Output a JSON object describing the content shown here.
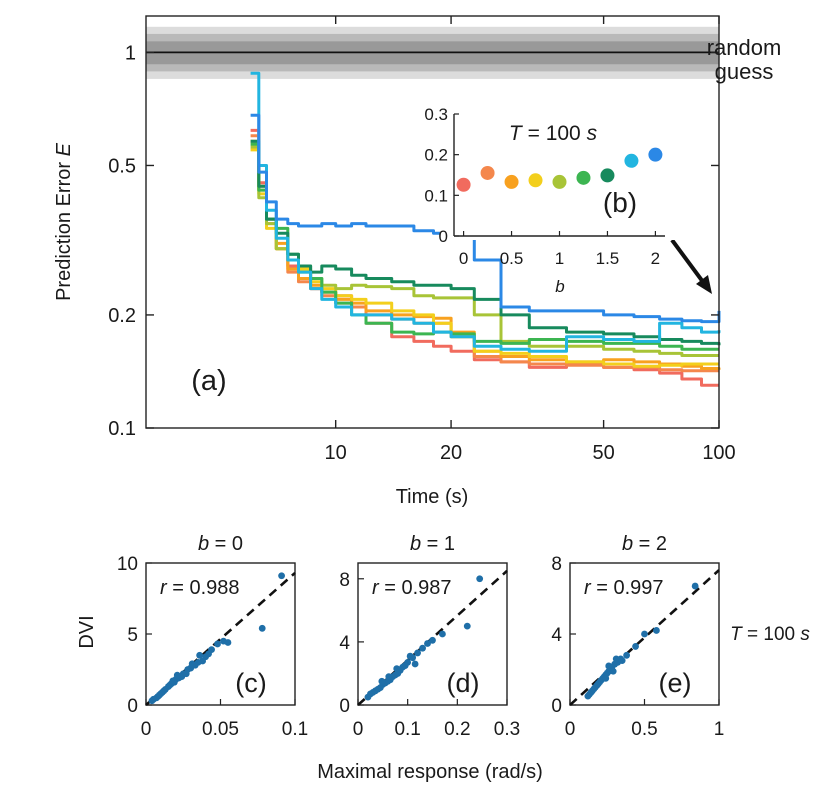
{
  "chart_data": {
    "main": {
      "type": "line",
      "panel_label": "(a)",
      "xlabel": "Time (s)",
      "ylabel_text": "Prediction Error",
      "ylabel_var": "E",
      "xscale": "log",
      "yscale": "log",
      "xlim": [
        3.2,
        100
      ],
      "ylim": [
        0.1,
        1.25
      ],
      "x_ticks": [
        10,
        20,
        50,
        100
      ],
      "x_tick_labels": [
        "10",
        "20",
        "50",
        "100"
      ],
      "y_ticks": [
        0.1,
        0.2,
        0.5,
        1
      ],
      "y_tick_labels": [
        "0.1",
        "0.2",
        "0.5",
        "1"
      ],
      "random_guess": {
        "label_line1": "random",
        "label_line2": "guess",
        "value": 1.0,
        "bands": [
          [
            0.85,
            1.17
          ],
          [
            0.89,
            1.12
          ],
          [
            0.93,
            1.07
          ]
        ]
      },
      "series": [
        {
          "name": "b=0",
          "color": "#f16b5e",
          "x": [
            6.0,
            6.3,
            6.6,
            7.0,
            7.5,
            8.0,
            8.6,
            9.2,
            10,
            11,
            12,
            14,
            16,
            18,
            20,
            23,
            27,
            32,
            40,
            50,
            60,
            70,
            80,
            90,
            100
          ],
          "y": [
            0.62,
            0.45,
            0.36,
            0.3,
            0.27,
            0.25,
            0.235,
            0.23,
            0.225,
            0.21,
            0.19,
            0.175,
            0.17,
            0.165,
            0.16,
            0.152,
            0.15,
            0.145,
            0.148,
            0.145,
            0.143,
            0.14,
            0.135,
            0.13,
            0.13
          ]
        },
        {
          "name": "b=0.25",
          "color": "#f4874c",
          "x": [
            6.0,
            6.3,
            6.6,
            7.0,
            7.5,
            8.0,
            8.6,
            9.2,
            10,
            11,
            12,
            14,
            16,
            18,
            20,
            23,
            27,
            32,
            40,
            50,
            60,
            70,
            80,
            90,
            100
          ],
          "y": [
            0.6,
            0.44,
            0.35,
            0.3,
            0.26,
            0.245,
            0.235,
            0.225,
            0.215,
            0.21,
            0.2,
            0.195,
            0.19,
            0.19,
            0.175,
            0.155,
            0.15,
            0.148,
            0.147,
            0.145,
            0.145,
            0.143,
            0.142,
            0.142,
            0.142
          ]
        },
        {
          "name": "b=0.5",
          "color": "#f8a11f",
          "x": [
            6.0,
            6.3,
            6.6,
            7.0,
            7.5,
            8.0,
            8.6,
            9.2,
            10,
            11,
            12,
            14,
            16,
            18,
            20,
            23,
            27,
            32,
            40,
            50,
            60,
            70,
            80,
            90,
            100
          ],
          "y": [
            0.58,
            0.43,
            0.36,
            0.31,
            0.265,
            0.25,
            0.24,
            0.23,
            0.22,
            0.215,
            0.205,
            0.2,
            0.198,
            0.196,
            0.18,
            0.16,
            0.155,
            0.152,
            0.15,
            0.152,
            0.15,
            0.148,
            0.146,
            0.144,
            0.143
          ]
        },
        {
          "name": "b=0.75",
          "color": "#f3cf1c",
          "x": [
            6.0,
            6.3,
            6.6,
            7.0,
            7.5,
            8.0,
            8.6,
            9.2,
            10,
            11,
            12,
            14,
            16,
            18,
            20,
            23,
            27,
            32,
            40,
            50,
            60,
            70,
            80,
            90,
            100
          ],
          "y": [
            0.55,
            0.42,
            0.34,
            0.3,
            0.28,
            0.265,
            0.245,
            0.235,
            0.225,
            0.22,
            0.215,
            0.205,
            0.2,
            0.19,
            0.175,
            0.16,
            0.158,
            0.155,
            0.15,
            0.148,
            0.146,
            0.147,
            0.148,
            0.148,
            0.148
          ]
        },
        {
          "name": "b=1",
          "color": "#a8c437",
          "x": [
            6.0,
            6.3,
            6.6,
            7.0,
            7.5,
            8.0,
            8.6,
            9.2,
            10,
            11,
            12,
            14,
            16,
            18,
            20,
            23,
            27,
            32,
            40,
            50,
            60,
            70,
            80,
            90,
            100
          ],
          "y": [
            0.56,
            0.41,
            0.35,
            0.3,
            0.28,
            0.26,
            0.25,
            0.24,
            0.235,
            0.24,
            0.238,
            0.235,
            0.225,
            0.222,
            0.222,
            0.2,
            0.17,
            0.165,
            0.165,
            0.162,
            0.16,
            0.158,
            0.156,
            0.156,
            0.156
          ]
        },
        {
          "name": "b=1.25",
          "color": "#3cb551",
          "x": [
            6.0,
            6.3,
            6.6,
            7.0,
            7.5,
            8.0,
            8.6,
            9.2,
            10,
            11,
            12,
            14,
            16,
            18,
            20,
            23,
            27,
            32,
            40,
            50,
            60,
            70,
            80,
            90,
            100
          ],
          "y": [
            0.57,
            0.43,
            0.36,
            0.34,
            0.29,
            0.27,
            0.25,
            0.23,
            0.215,
            0.2,
            0.19,
            0.18,
            0.178,
            0.18,
            0.178,
            0.17,
            0.168,
            0.172,
            0.17,
            0.168,
            0.168,
            0.165,
            0.162,
            0.162,
            0.162
          ]
        },
        {
          "name": "b=1.5",
          "color": "#178a5d",
          "x": [
            6.0,
            6.3,
            6.6,
            7.0,
            7.5,
            8.0,
            8.6,
            9.2,
            10,
            11,
            12,
            14,
            16,
            18,
            20,
            23,
            27,
            32,
            40,
            50,
            60,
            70,
            80,
            90,
            100
          ],
          "y": [
            0.58,
            0.44,
            0.36,
            0.33,
            0.29,
            0.27,
            0.26,
            0.27,
            0.265,
            0.255,
            0.25,
            0.245,
            0.24,
            0.24,
            0.235,
            0.22,
            0.2,
            0.185,
            0.18,
            0.178,
            0.175,
            0.172,
            0.17,
            0.168,
            0.166
          ]
        },
        {
          "name": "b=1.75",
          "color": "#22b5e0",
          "x": [
            6.0,
            6.3,
            6.6,
            7.0,
            7.5,
            8.0,
            8.6,
            9.2,
            10,
            11,
            12,
            14,
            16,
            18,
            20,
            23,
            27,
            32,
            40,
            50,
            60,
            70,
            80,
            90,
            100
          ],
          "y": [
            0.88,
            0.5,
            0.38,
            0.32,
            0.28,
            0.26,
            0.235,
            0.22,
            0.21,
            0.2,
            0.2,
            0.195,
            0.19,
            0.18,
            0.175,
            0.165,
            0.162,
            0.16,
            0.175,
            0.172,
            0.17,
            0.19,
            0.185,
            0.18,
            0.182
          ]
        },
        {
          "name": "b=2",
          "color": "#2b88e6",
          "x": [
            6.0,
            6.3,
            6.6,
            7.0,
            7.5,
            8.0,
            8.6,
            9.2,
            10,
            11,
            12,
            14,
            16,
            18,
            20,
            23,
            27,
            32,
            40,
            50,
            60,
            70,
            80,
            90,
            100
          ],
          "y": [
            0.68,
            0.48,
            0.4,
            0.36,
            0.35,
            0.345,
            0.345,
            0.35,
            0.345,
            0.35,
            0.345,
            0.345,
            0.335,
            0.33,
            0.32,
            0.28,
            0.21,
            0.205,
            0.205,
            0.2,
            0.198,
            0.195,
            0.193,
            0.192,
            0.205
          ]
        }
      ]
    },
    "inset": {
      "type": "scatter",
      "panel_label": "(b)",
      "title_var": "T",
      "title_value": "= 100",
      "title_unit": "s",
      "xlabel": "b",
      "xlim": [
        -0.1,
        2.1
      ],
      "ylim": [
        0,
        0.3
      ],
      "x_ticks": [
        0,
        0.5,
        1,
        1.5,
        2
      ],
      "x_tick_labels": [
        "0",
        "0.5",
        "1",
        "1.5",
        "2"
      ],
      "y_ticks": [
        0,
        0.1,
        0.2,
        0.3
      ],
      "y_tick_labels": [
        "0",
        "0.1",
        "0.2",
        "0.3"
      ],
      "x": [
        0,
        0.25,
        0.5,
        0.75,
        1,
        1.25,
        1.5,
        1.75,
        2
      ],
      "y": [
        0.126,
        0.155,
        0.133,
        0.137,
        0.133,
        0.143,
        0.149,
        0.185,
        0.2
      ],
      "colors": [
        "#f16b5e",
        "#f4874c",
        "#f8a11f",
        "#f3cf1c",
        "#a8c437",
        "#3cb551",
        "#178a5d",
        "#22b5e0",
        "#2b88e6"
      ]
    },
    "scatter_panels": [
      {
        "type": "scatter",
        "panel_label": "(c)",
        "title_var": "b",
        "title_value": "= 0",
        "r_var": "r",
        "r_value": "= 0.988",
        "xlim": [
          0,
          0.1
        ],
        "ylim": [
          0,
          10
        ],
        "x_ticks": [
          0,
          0.05,
          0.1
        ],
        "x_tick_labels": [
          "0",
          "0.05",
          "0.1"
        ],
        "y_ticks": [
          0,
          5,
          10
        ],
        "y_tick_labels": [
          "0",
          "5",
          "10"
        ],
        "fit": [
          [
            0,
            0
          ],
          [
            0.1,
            9.3
          ]
        ],
        "points": [
          [
            0.091,
            9.1
          ],
          [
            0.078,
            5.4
          ],
          [
            0.052,
            4.5
          ],
          [
            0.048,
            4.3
          ],
          [
            0.055,
            4.4
          ],
          [
            0.042,
            3.6
          ],
          [
            0.04,
            3.4
          ],
          [
            0.038,
            3.1
          ],
          [
            0.035,
            3.0
          ],
          [
            0.033,
            2.8
          ],
          [
            0.03,
            2.6
          ],
          [
            0.028,
            2.5
          ],
          [
            0.025,
            2.2
          ],
          [
            0.024,
            2.0
          ],
          [
            0.022,
            1.9
          ],
          [
            0.02,
            1.8
          ],
          [
            0.019,
            1.6
          ],
          [
            0.017,
            1.5
          ],
          [
            0.016,
            1.4
          ],
          [
            0.015,
            1.3
          ],
          [
            0.013,
            1.1
          ],
          [
            0.012,
            1.0
          ],
          [
            0.011,
            0.9
          ],
          [
            0.01,
            0.8
          ],
          [
            0.008,
            0.6
          ],
          [
            0.007,
            0.5
          ],
          [
            0.005,
            0.4
          ],
          [
            0.004,
            0.3
          ],
          [
            0.036,
            3.5
          ],
          [
            0.027,
            2.2
          ],
          [
            0.031,
            2.9
          ],
          [
            0.018,
            1.7
          ],
          [
            0.021,
            2.1
          ],
          [
            0.044,
            3.9
          ],
          [
            0.009,
            0.7
          ]
        ]
      },
      {
        "type": "scatter",
        "panel_label": "(d)",
        "title_var": "b",
        "title_value": "= 1",
        "r_var": "r",
        "r_value": "= 0.987",
        "xlim": [
          0,
          0.3
        ],
        "ylim": [
          0,
          9
        ],
        "x_ticks": [
          0,
          0.1,
          0.2,
          0.3
        ],
        "x_tick_labels": [
          "0",
          "0.1",
          "0.2",
          "0.3"
        ],
        "y_ticks": [
          0,
          4,
          8
        ],
        "y_tick_labels": [
          "0",
          "4",
          "8"
        ],
        "fit": [
          [
            0,
            0
          ],
          [
            0.3,
            8.5
          ]
        ],
        "points": [
          [
            0.245,
            8.0
          ],
          [
            0.22,
            5.0
          ],
          [
            0.17,
            4.5
          ],
          [
            0.15,
            4.1
          ],
          [
            0.14,
            3.9
          ],
          [
            0.13,
            3.6
          ],
          [
            0.12,
            3.3
          ],
          [
            0.11,
            3.0
          ],
          [
            0.1,
            2.7
          ],
          [
            0.095,
            2.5
          ],
          [
            0.09,
            2.4
          ],
          [
            0.085,
            2.2
          ],
          [
            0.08,
            2.0
          ],
          [
            0.075,
            1.9
          ],
          [
            0.07,
            1.8
          ],
          [
            0.065,
            1.6
          ],
          [
            0.06,
            1.5
          ],
          [
            0.055,
            1.4
          ],
          [
            0.05,
            1.3
          ],
          [
            0.045,
            1.1
          ],
          [
            0.04,
            1.0
          ],
          [
            0.035,
            0.9
          ],
          [
            0.03,
            0.8
          ],
          [
            0.025,
            0.7
          ],
          [
            0.02,
            0.5
          ],
          [
            0.115,
            2.6
          ],
          [
            0.105,
            3.1
          ],
          [
            0.078,
            2.3
          ],
          [
            0.062,
            1.8
          ],
          [
            0.048,
            1.5
          ]
        ]
      },
      {
        "type": "scatter",
        "panel_label": "(e)",
        "title_var": "b",
        "title_value": "= 2",
        "r_var": "r",
        "r_value": "= 0.997",
        "xlim": [
          0,
          1
        ],
        "ylim": [
          0,
          8
        ],
        "x_ticks": [
          0,
          0.5,
          1
        ],
        "x_tick_labels": [
          "0",
          "0.5",
          "1"
        ],
        "y_ticks": [
          0,
          4,
          8
        ],
        "y_tick_labels": [
          "0",
          "4",
          "8"
        ],
        "fit": [
          [
            0,
            0
          ],
          [
            1,
            7.6
          ]
        ],
        "points": [
          [
            0.84,
            6.7
          ],
          [
            0.58,
            4.2
          ],
          [
            0.5,
            4.0
          ],
          [
            0.44,
            3.3
          ],
          [
            0.38,
            2.8
          ],
          [
            0.34,
            2.6
          ],
          [
            0.32,
            2.4
          ],
          [
            0.3,
            2.3
          ],
          [
            0.28,
            2.1
          ],
          [
            0.27,
            2.0
          ],
          [
            0.26,
            1.9
          ],
          [
            0.25,
            1.8
          ],
          [
            0.24,
            1.7
          ],
          [
            0.23,
            1.6
          ],
          [
            0.22,
            1.5
          ],
          [
            0.21,
            1.4
          ],
          [
            0.2,
            1.3
          ],
          [
            0.19,
            1.2
          ],
          [
            0.18,
            1.1
          ],
          [
            0.17,
            1.0
          ],
          [
            0.16,
            0.9
          ],
          [
            0.15,
            0.8
          ],
          [
            0.14,
            0.7
          ],
          [
            0.13,
            0.6
          ],
          [
            0.12,
            0.5
          ],
          [
            0.31,
            2.6
          ],
          [
            0.29,
            1.9
          ],
          [
            0.26,
            2.2
          ],
          [
            0.35,
            2.5
          ],
          [
            0.24,
            1.5
          ]
        ]
      }
    ],
    "scatter_shared": {
      "ylabel": "DVI",
      "xlabel": "Maximal response (rad/s)",
      "side_var": "T",
      "side_value": "= 100",
      "side_unit": "s"
    }
  }
}
